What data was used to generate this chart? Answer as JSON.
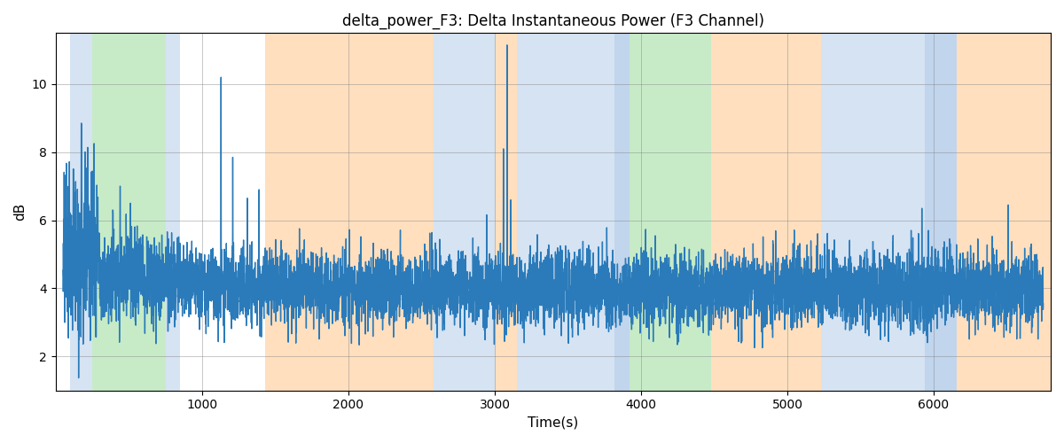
{
  "title": "delta_power_F3: Delta Instantaneous Power (F3 Channel)",
  "xlabel": "Time(s)",
  "ylabel": "dB",
  "ylim": [
    1.0,
    11.5
  ],
  "xlim": [
    0,
    6800
  ],
  "line_color": "#2b7bba",
  "line_width": 1.0,
  "figsize": [
    12.0,
    5.0
  ],
  "dpi": 100,
  "yticks": [
    2,
    4,
    6,
    8,
    10
  ],
  "xticks": [
    1000,
    2000,
    3000,
    4000,
    5000,
    6000
  ],
  "bands": [
    {
      "xmin": 100,
      "xmax": 250,
      "color": "#adc8e8",
      "alpha": 0.5
    },
    {
      "xmin": 250,
      "xmax": 750,
      "color": "#90d890",
      "alpha": 0.5
    },
    {
      "xmin": 750,
      "xmax": 850,
      "color": "#adc8e8",
      "alpha": 0.5
    },
    {
      "xmin": 1430,
      "xmax": 1620,
      "color": "#ffb870",
      "alpha": 0.45
    },
    {
      "xmin": 1620,
      "xmax": 2580,
      "color": "#ffb870",
      "alpha": 0.45
    },
    {
      "xmin": 2580,
      "xmax": 3000,
      "color": "#adc8e8",
      "alpha": 0.5
    },
    {
      "xmin": 3000,
      "xmax": 3150,
      "color": "#ffb870",
      "alpha": 0.45
    },
    {
      "xmin": 3150,
      "xmax": 3820,
      "color": "#adc8e8",
      "alpha": 0.5
    },
    {
      "xmin": 3820,
      "xmax": 3920,
      "color": "#adc8e8",
      "alpha": 0.75
    },
    {
      "xmin": 3920,
      "xmax": 4480,
      "color": "#90d890",
      "alpha": 0.5
    },
    {
      "xmin": 4480,
      "xmax": 4680,
      "color": "#ffb870",
      "alpha": 0.45
    },
    {
      "xmin": 4680,
      "xmax": 5230,
      "color": "#ffb870",
      "alpha": 0.45
    },
    {
      "xmin": 5230,
      "xmax": 5940,
      "color": "#adc8e8",
      "alpha": 0.5
    },
    {
      "xmin": 5940,
      "xmax": 6160,
      "color": "#adc8e8",
      "alpha": 0.75
    },
    {
      "xmin": 6160,
      "xmax": 6800,
      "color": "#ffb870",
      "alpha": 0.45
    }
  ],
  "seed": 42
}
